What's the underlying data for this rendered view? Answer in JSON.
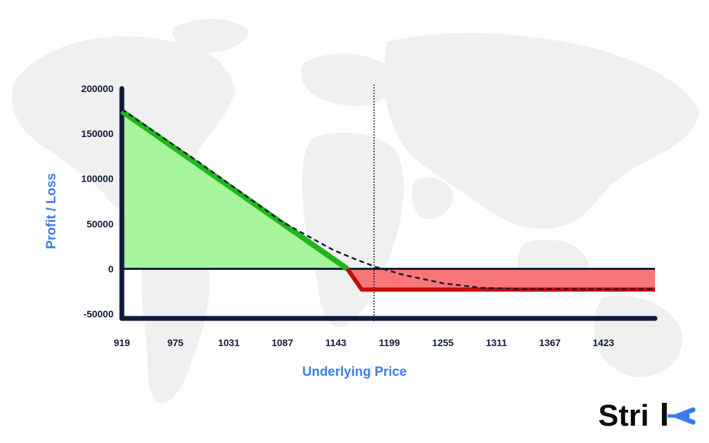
{
  "brand": {
    "name": "Strike",
    "text": "Stri",
    "mark_color": "#3b7bf0"
  },
  "colors": {
    "profit_fill": "#a6f59c",
    "profit_line": "#22b51c",
    "loss_fill": "#f97676",
    "loss_line": "#c20b0b",
    "axis": "#111a3a",
    "title": "#3b7bf0",
    "expected": "#111a3a"
  },
  "chart_data": {
    "type": "line",
    "xlabel": "Underlying Price",
    "ylabel": "Profit / Loss",
    "x_ticks": [
      "919",
      "975",
      "1031",
      "1087",
      "1143",
      "1199",
      "1255",
      "1311",
      "1367",
      "1423"
    ],
    "y_ticks": [
      "200000",
      "150000",
      "100000",
      "50000",
      "0",
      "-50000"
    ],
    "xlim": [
      919,
      1477
    ],
    "ylim": [
      -55000,
      200000
    ],
    "series": [
      {
        "style": "payoff-at-expiry",
        "x": [
          919,
          1155,
          1170,
          1477
        ],
        "y": [
          175000,
          0,
          -23000,
          -23000
        ]
      },
      {
        "style": "expected-dashed",
        "x": [
          919,
          1000,
          1087,
          1140,
          1165,
          1185,
          1215,
          1255,
          1295,
          1340,
          1400,
          1477
        ],
        "y": [
          177000,
          118000,
          52000,
          21000,
          10000,
          2000,
          -7000,
          -16000,
          -21000,
          -22500,
          -22500,
          -22500
        ]
      }
    ],
    "marker_x": 1183,
    "grid": false,
    "legend": "none"
  }
}
